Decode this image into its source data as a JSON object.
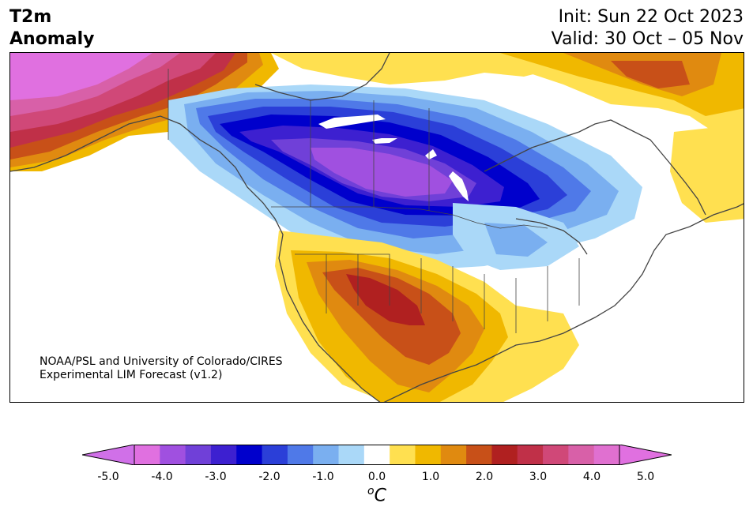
{
  "header": {
    "title_line1": "T2m",
    "title_line2": "Anomaly",
    "init": "Init: Sun 22 Oct 2023",
    "valid": "Valid: 30 Oct – 05 Nov"
  },
  "map": {
    "credit_line1": "NOAA/PSL and University of Colorado/CIRES",
    "credit_line2": "Experimental LIM Forecast (v1.2)"
  },
  "colorbar": {
    "levels": [
      "#e070e0",
      "#a050e0",
      "#7040d8",
      "#3d20d0",
      "#0000cc",
      "#2b3fd8",
      "#4f79e8",
      "#7aaff0",
      "#aad8f8",
      "#ffffff",
      "#ffe050",
      "#f0b800",
      "#e08a10",
      "#c85018",
      "#b02020",
      "#c03048",
      "#d04878",
      "#d860a8",
      "#e070d0"
    ],
    "under_color": "#d070e8",
    "over_color": "#e070e0",
    "tick_labels": [
      "-5.0",
      "-4.0",
      "-3.0",
      "-2.0",
      "-1.0",
      "0.0",
      "1.0",
      "2.0",
      "3.0",
      "4.0",
      "5.0"
    ],
    "unit_base": "C",
    "unit_sup": "o"
  }
}
